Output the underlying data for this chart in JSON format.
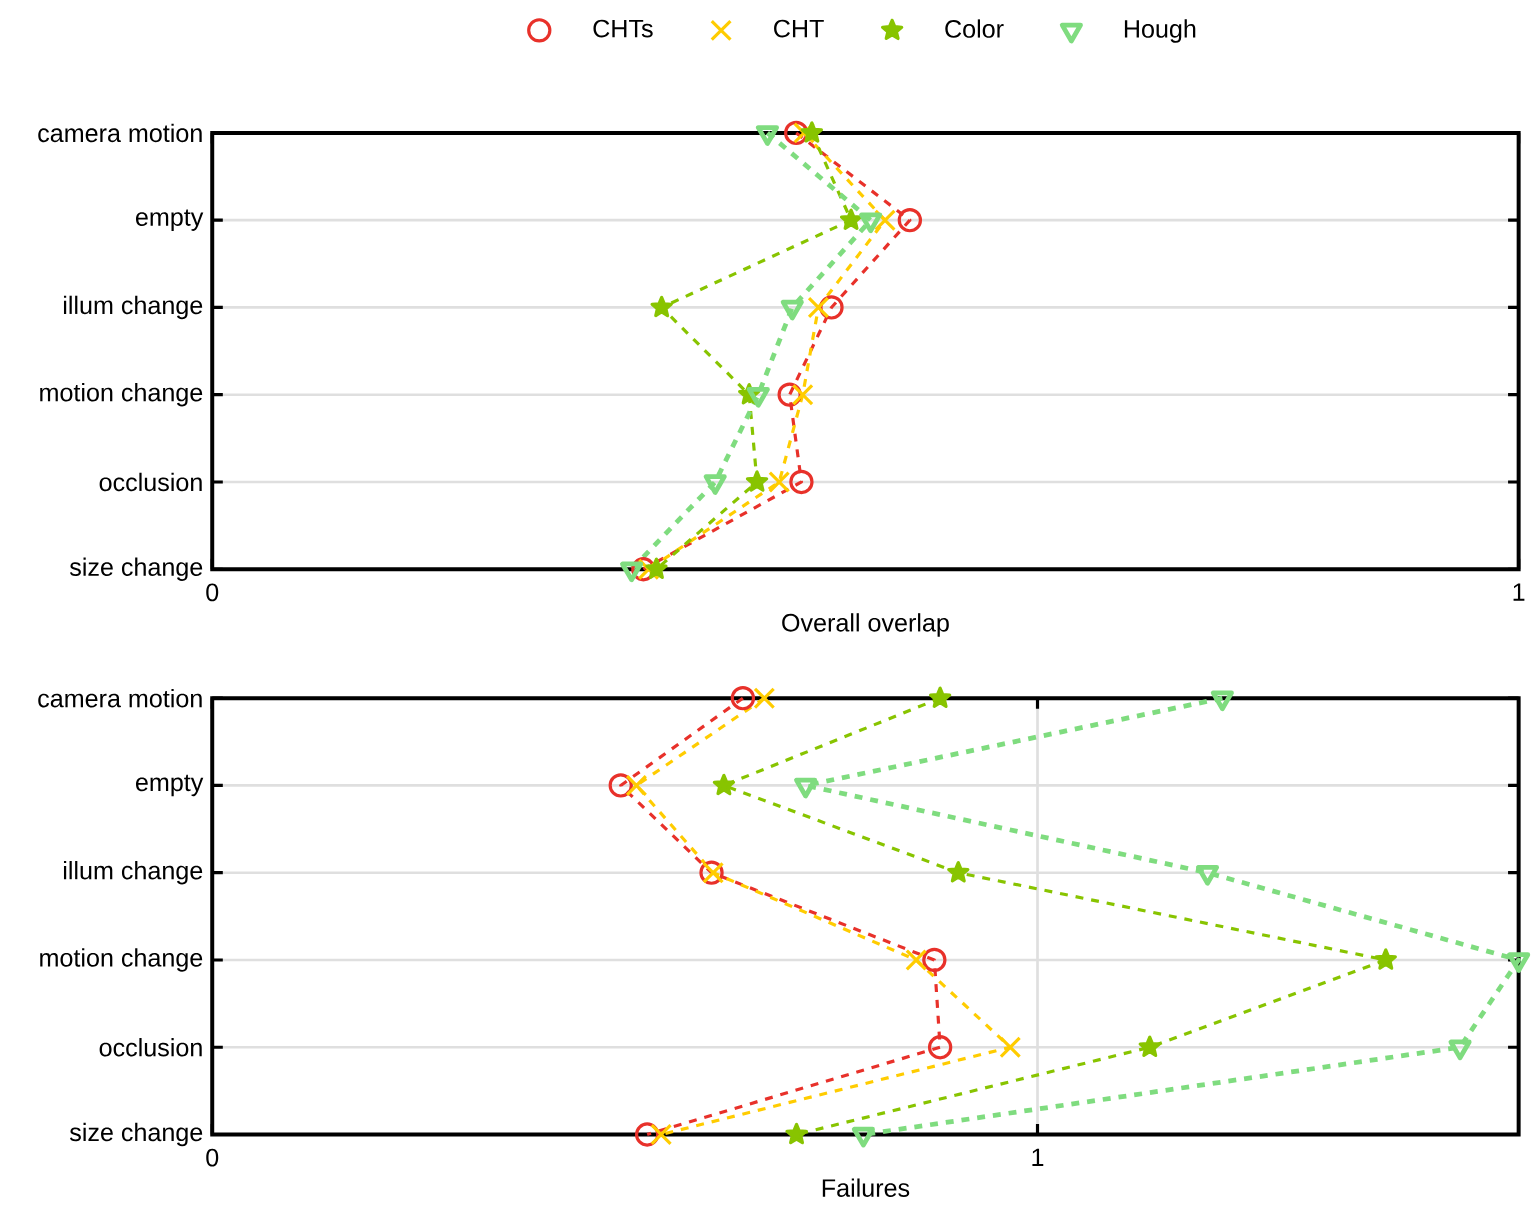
{
  "chart_data": [
    {
      "type": "line",
      "orientation": "horizontal",
      "xlabel": "Overall overlap",
      "categories": [
        "camera motion",
        "empty",
        "illum change",
        "motion change",
        "occlusion",
        "size change"
      ],
      "xlim": [
        0,
        1
      ],
      "xticks": [
        0,
        1
      ],
      "grid": true,
      "legend": "top",
      "line_style": "dashed",
      "series": [
        {
          "name": "CHTs",
          "color": "#e8312a",
          "marker": "circle",
          "values": [
            0.447,
            0.534,
            0.474,
            0.442,
            0.451,
            0.33
          ]
        },
        {
          "name": "CHT",
          "color": "#ffcc00",
          "marker": "cross",
          "values": [
            0.453,
            0.515,
            0.464,
            0.452,
            0.434,
            0.334
          ]
        },
        {
          "name": "Color",
          "color": "#88c400",
          "marker": "star",
          "values": [
            0.459,
            0.489,
            0.344,
            0.411,
            0.417,
            0.34
          ]
        },
        {
          "name": "Hough",
          "color": "#7fdc7f",
          "marker": "triangle",
          "values": [
            0.425,
            0.504,
            0.444,
            0.418,
            0.385,
            0.321
          ]
        }
      ]
    },
    {
      "type": "line",
      "orientation": "horizontal",
      "xlabel": "Failures",
      "categories": [
        "camera motion",
        "empty",
        "illum change",
        "motion change",
        "occlusion",
        "size change"
      ],
      "xlim": [
        0,
        1.583
      ],
      "xticks": [
        0,
        1
      ],
      "grid": true,
      "line_style": "dashed",
      "series": [
        {
          "color": "#e8312a",
          "marker": "circle",
          "values": [
            0.643,
            0.495,
            0.605,
            0.875,
            0.882,
            0.527
          ]
        },
        {
          "color": "#ffcc00",
          "marker": "cross",
          "values": [
            0.669,
            0.514,
            0.607,
            0.853,
            0.967,
            0.544
          ]
        },
        {
          "color": "#88c400",
          "marker": "star",
          "values": [
            0.882,
            0.62,
            0.904,
            1.422,
            1.136,
            0.708
          ]
        },
        {
          "color": "#7fdc7f",
          "marker": "triangle",
          "values": [
            1.224,
            0.719,
            1.206,
            1.583,
            1.512,
            0.789
          ]
        }
      ]
    }
  ]
}
